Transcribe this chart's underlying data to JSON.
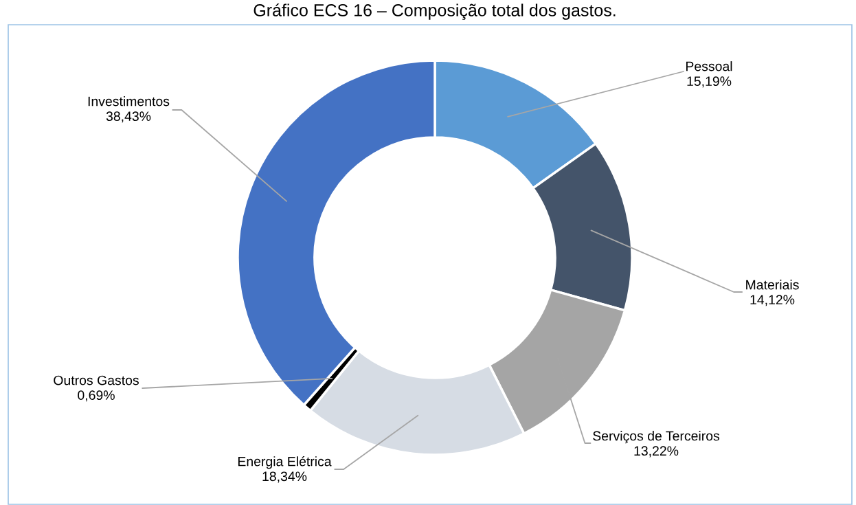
{
  "chart_data": {
    "type": "donut",
    "title": "Gráfico ECS 16 – Composição total dos gastos.",
    "categories": [
      "Pessoal",
      "Materiais",
      "Serviços de Terceiros",
      "Energia Elétrica",
      "Outros Gastos",
      "Investimentos"
    ],
    "values": [
      15.19,
      14.12,
      13.22,
      18.34,
      0.69,
      38.43
    ],
    "value_labels": [
      "15,19%",
      "14,12%",
      "13,22%",
      "18,34%",
      "0,69%",
      "38,43%"
    ],
    "colors": [
      "#5b9bd5",
      "#44546a",
      "#a5a5a5",
      "#d6dce4",
      "#000000",
      "#4472c4"
    ]
  }
}
